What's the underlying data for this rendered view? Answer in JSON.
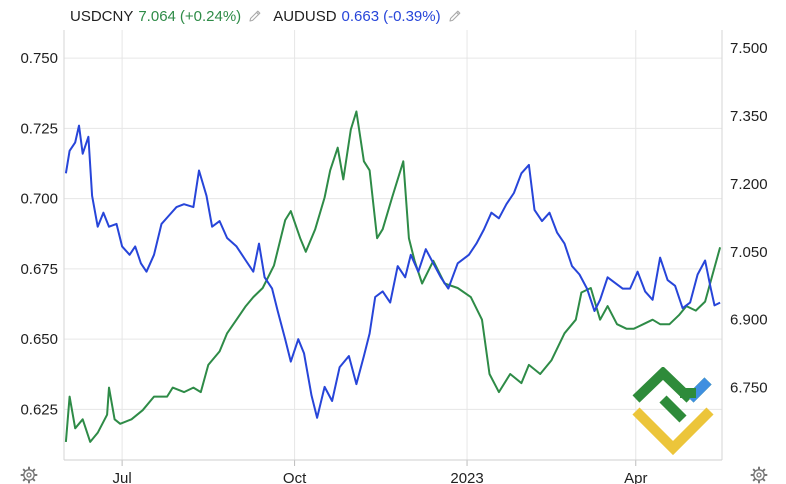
{
  "legend": {
    "items": [
      {
        "symbol": "USDCNY",
        "value": "7.064",
        "change": "(+0.24%)",
        "color": "#2e8b47"
      },
      {
        "symbol": "AUDUSD",
        "value": "0.663",
        "change": "(-0.39%)",
        "color": "#2745d9"
      }
    ]
  },
  "colors": {
    "grid": "#e6e6e6",
    "axis_text": "#1f1f1f",
    "usdcny": "#2e8b47",
    "audusd": "#2745d9"
  },
  "icons": {
    "settings": "gear-icon",
    "edit": "pencil-icon"
  },
  "chart_data": {
    "type": "line",
    "x_ticks": [
      "Jul",
      "Oct",
      "2023",
      "Apr"
    ],
    "x_tick_positions": [
      "2022-07-01",
      "2022-10-01",
      "2023-01-01",
      "2023-04-01"
    ],
    "x_range": [
      "2022-05-31",
      "2023-05-17"
    ],
    "left_axis": {
      "ticks": [
        "0.750",
        "0.725",
        "0.700",
        "0.675",
        "0.650",
        "0.625"
      ],
      "range": [
        0.607,
        0.76
      ]
    },
    "right_axis": {
      "ticks": [
        "7.500",
        "7.350",
        "7.200",
        "7.050",
        "6.900",
        "6.750"
      ],
      "range": [
        6.59,
        7.54
      ]
    },
    "grid": true,
    "series": [
      {
        "name": "USDCNY",
        "axis": "right",
        "points": [
          [
            "2022-06-01",
            6.63
          ],
          [
            "2022-06-03",
            6.73
          ],
          [
            "2022-06-06",
            6.66
          ],
          [
            "2022-06-10",
            6.68
          ],
          [
            "2022-06-14",
            6.63
          ],
          [
            "2022-06-18",
            6.65
          ],
          [
            "2022-06-23",
            6.69
          ],
          [
            "2022-06-24",
            6.75
          ],
          [
            "2022-06-27",
            6.68
          ],
          [
            "2022-06-30",
            6.67
          ],
          [
            "2022-07-06",
            6.68
          ],
          [
            "2022-07-12",
            6.7
          ],
          [
            "2022-07-18",
            6.73
          ],
          [
            "2022-07-25",
            6.73
          ],
          [
            "2022-07-28",
            6.75
          ],
          [
            "2022-08-03",
            6.74
          ],
          [
            "2022-08-08",
            6.75
          ],
          [
            "2022-08-12",
            6.74
          ],
          [
            "2022-08-16",
            6.8
          ],
          [
            "2022-08-22",
            6.83
          ],
          [
            "2022-08-26",
            6.87
          ],
          [
            "2022-08-31",
            6.9
          ],
          [
            "2022-09-05",
            6.93
          ],
          [
            "2022-09-09",
            6.95
          ],
          [
            "2022-09-14",
            6.97
          ],
          [
            "2022-09-20",
            7.02
          ],
          [
            "2022-09-26",
            7.12
          ],
          [
            "2022-09-29",
            7.14
          ],
          [
            "2022-10-04",
            7.08
          ],
          [
            "2022-10-07",
            7.05
          ],
          [
            "2022-10-12",
            7.1
          ],
          [
            "2022-10-17",
            7.17
          ],
          [
            "2022-10-20",
            7.23
          ],
          [
            "2022-10-24",
            7.28
          ],
          [
            "2022-10-27",
            7.21
          ],
          [
            "2022-10-31",
            7.32
          ],
          [
            "2022-11-03",
            7.36
          ],
          [
            "2022-11-07",
            7.25
          ],
          [
            "2022-11-10",
            7.23
          ],
          [
            "2022-11-14",
            7.08
          ],
          [
            "2022-11-17",
            7.1
          ],
          [
            "2022-11-22",
            7.17
          ],
          [
            "2022-11-28",
            7.25
          ],
          [
            "2022-12-01",
            7.08
          ],
          [
            "2022-12-04",
            7.03
          ],
          [
            "2022-12-08",
            6.98
          ],
          [
            "2022-12-14",
            7.03
          ],
          [
            "2022-12-20",
            6.98
          ],
          [
            "2022-12-27",
            6.97
          ],
          [
            "2023-01-03",
            6.95
          ],
          [
            "2023-01-09",
            6.9
          ],
          [
            "2023-01-13",
            6.78
          ],
          [
            "2023-01-18",
            6.74
          ],
          [
            "2023-01-24",
            6.78
          ],
          [
            "2023-01-30",
            6.76
          ],
          [
            "2023-02-03",
            6.8
          ],
          [
            "2023-02-09",
            6.78
          ],
          [
            "2023-02-15",
            6.81
          ],
          [
            "2023-02-22",
            6.87
          ],
          [
            "2023-02-28",
            6.9
          ],
          [
            "2023-03-03",
            6.96
          ],
          [
            "2023-03-08",
            6.97
          ],
          [
            "2023-03-13",
            6.9
          ],
          [
            "2023-03-17",
            6.93
          ],
          [
            "2023-03-22",
            6.89
          ],
          [
            "2023-03-27",
            6.88
          ],
          [
            "2023-03-31",
            6.88
          ],
          [
            "2023-04-05",
            6.89
          ],
          [
            "2023-04-10",
            6.9
          ],
          [
            "2023-04-14",
            6.89
          ],
          [
            "2023-04-19",
            6.89
          ],
          [
            "2023-04-24",
            6.91
          ],
          [
            "2023-04-28",
            6.93
          ],
          [
            "2023-05-03",
            6.92
          ],
          [
            "2023-05-08",
            6.94
          ],
          [
            "2023-05-12",
            7.0
          ],
          [
            "2023-05-16",
            7.06
          ]
        ]
      },
      {
        "name": "AUDUSD",
        "axis": "left",
        "points": [
          [
            "2022-06-01",
            0.709
          ],
          [
            "2022-06-03",
            0.717
          ],
          [
            "2022-06-06",
            0.72
          ],
          [
            "2022-06-08",
            0.726
          ],
          [
            "2022-06-10",
            0.716
          ],
          [
            "2022-06-13",
            0.722
          ],
          [
            "2022-06-15",
            0.701
          ],
          [
            "2022-06-18",
            0.69
          ],
          [
            "2022-06-21",
            0.695
          ],
          [
            "2022-06-24",
            0.69
          ],
          [
            "2022-06-28",
            0.691
          ],
          [
            "2022-07-01",
            0.683
          ],
          [
            "2022-07-05",
            0.68
          ],
          [
            "2022-07-08",
            0.683
          ],
          [
            "2022-07-11",
            0.677
          ],
          [
            "2022-07-14",
            0.674
          ],
          [
            "2022-07-18",
            0.68
          ],
          [
            "2022-07-22",
            0.691
          ],
          [
            "2022-07-26",
            0.694
          ],
          [
            "2022-07-30",
            0.697
          ],
          [
            "2022-08-03",
            0.698
          ],
          [
            "2022-08-08",
            0.697
          ],
          [
            "2022-08-11",
            0.71
          ],
          [
            "2022-08-15",
            0.701
          ],
          [
            "2022-08-18",
            0.69
          ],
          [
            "2022-08-22",
            0.692
          ],
          [
            "2022-08-26",
            0.686
          ],
          [
            "2022-08-31",
            0.683
          ],
          [
            "2022-09-05",
            0.678
          ],
          [
            "2022-09-09",
            0.674
          ],
          [
            "2022-09-12",
            0.684
          ],
          [
            "2022-09-15",
            0.672
          ],
          [
            "2022-09-19",
            0.668
          ],
          [
            "2022-09-22",
            0.66
          ],
          [
            "2022-09-26",
            0.65
          ],
          [
            "2022-09-29",
            0.642
          ],
          [
            "2022-10-03",
            0.65
          ],
          [
            "2022-10-06",
            0.645
          ],
          [
            "2022-10-10",
            0.63
          ],
          [
            "2022-10-13",
            0.622
          ],
          [
            "2022-10-17",
            0.633
          ],
          [
            "2022-10-21",
            0.628
          ],
          [
            "2022-10-25",
            0.64
          ],
          [
            "2022-10-30",
            0.644
          ],
          [
            "2022-11-03",
            0.634
          ],
          [
            "2022-11-07",
            0.644
          ],
          [
            "2022-11-10",
            0.652
          ],
          [
            "2022-11-13",
            0.665
          ],
          [
            "2022-11-17",
            0.667
          ],
          [
            "2022-11-21",
            0.663
          ],
          [
            "2022-11-25",
            0.676
          ],
          [
            "2022-11-29",
            0.672
          ],
          [
            "2022-12-02",
            0.68
          ],
          [
            "2022-12-06",
            0.674
          ],
          [
            "2022-12-10",
            0.682
          ],
          [
            "2022-12-14",
            0.677
          ],
          [
            "2022-12-18",
            0.672
          ],
          [
            "2022-12-22",
            0.668
          ],
          [
            "2022-12-27",
            0.677
          ],
          [
            "2023-01-02",
            0.68
          ],
          [
            "2023-01-06",
            0.684
          ],
          [
            "2023-01-10",
            0.689
          ],
          [
            "2023-01-14",
            0.695
          ],
          [
            "2023-01-18",
            0.693
          ],
          [
            "2023-01-22",
            0.698
          ],
          [
            "2023-01-26",
            0.702
          ],
          [
            "2023-01-30",
            0.709
          ],
          [
            "2023-02-03",
            0.712
          ],
          [
            "2023-02-06",
            0.696
          ],
          [
            "2023-02-10",
            0.692
          ],
          [
            "2023-02-14",
            0.695
          ],
          [
            "2023-02-18",
            0.688
          ],
          [
            "2023-02-22",
            0.684
          ],
          [
            "2023-02-26",
            0.676
          ],
          [
            "2023-03-02",
            0.673
          ],
          [
            "2023-03-06",
            0.668
          ],
          [
            "2023-03-10",
            0.66
          ],
          [
            "2023-03-13",
            0.664
          ],
          [
            "2023-03-17",
            0.672
          ],
          [
            "2023-03-21",
            0.67
          ],
          [
            "2023-03-25",
            0.668
          ],
          [
            "2023-03-29",
            0.668
          ],
          [
            "2023-04-02",
            0.674
          ],
          [
            "2023-04-06",
            0.667
          ],
          [
            "2023-04-10",
            0.664
          ],
          [
            "2023-04-14",
            0.679
          ],
          [
            "2023-04-18",
            0.671
          ],
          [
            "2023-04-22",
            0.669
          ],
          [
            "2023-04-26",
            0.661
          ],
          [
            "2023-04-30",
            0.663
          ],
          [
            "2023-05-04",
            0.673
          ],
          [
            "2023-05-08",
            0.678
          ],
          [
            "2023-05-11",
            0.668
          ],
          [
            "2023-05-13",
            0.662
          ],
          [
            "2023-05-16",
            0.663
          ]
        ]
      }
    ]
  }
}
